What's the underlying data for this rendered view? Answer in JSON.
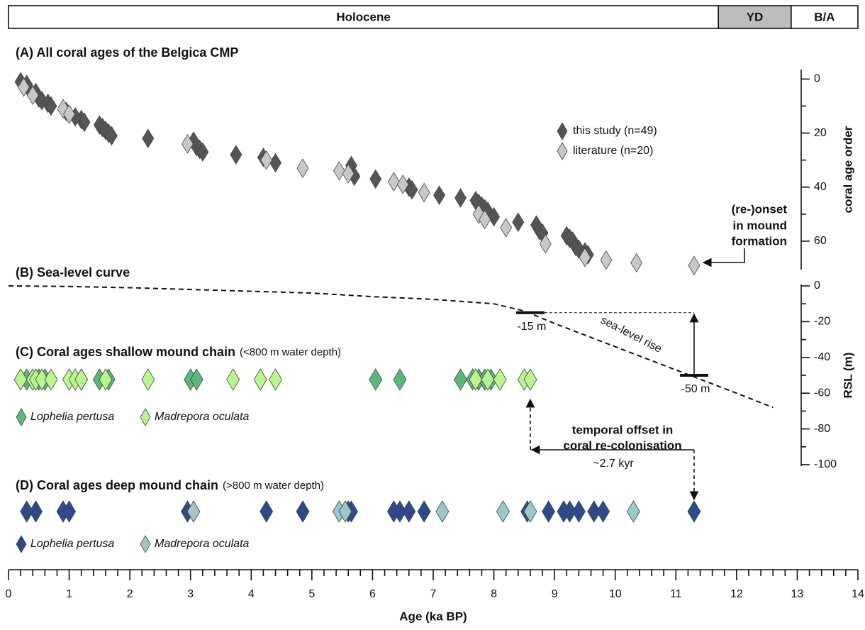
{
  "periods": [
    {
      "label": "Holocene",
      "start": 0,
      "end": 11.7,
      "color": "#ffffff"
    },
    {
      "label": "YD",
      "start": 11.7,
      "end": 12.9,
      "color": "#bdbdbd"
    },
    {
      "label": "B/A",
      "start": 12.9,
      "end": 14,
      "color": "#ffffff"
    }
  ],
  "chart_data": [
    {
      "type": "scatter",
      "title": "(A) All coral ages of the Belgica CMP",
      "ylabel": "coral age order",
      "ylim": [
        -3,
        70
      ],
      "yticks": [
        0,
        20,
        40,
        60
      ],
      "yminorticks": [
        10,
        30,
        50
      ],
      "series": [
        {
          "name": "this study (n=49)",
          "color": "#555555",
          "x": [
            0.2,
            0.3,
            0.35,
            0.45,
            0.5,
            0.55,
            0.65,
            0.7,
            0.95,
            1.1,
            1.2,
            1.25,
            1.5,
            1.55,
            1.6,
            1.65,
            1.7,
            2.3,
            3.05,
            3.1,
            3.15,
            3.2,
            3.75,
            4.2,
            4.4,
            5.65,
            5.7,
            6.05,
            6.6,
            6.65,
            7.1,
            7.45,
            7.7,
            7.75,
            7.8,
            7.85,
            7.9,
            8.0,
            8.4,
            8.7,
            8.75,
            8.8,
            9.2,
            9.25,
            9.3,
            9.35,
            9.4,
            9.5,
            9.55
          ],
          "y": [
            1,
            2,
            4,
            5,
            7,
            8,
            9,
            10,
            12,
            14,
            15,
            16,
            17,
            18,
            19,
            20,
            21,
            22,
            23,
            25,
            26,
            27,
            28,
            29,
            31,
            32,
            36,
            37,
            40,
            41,
            43,
            44,
            45,
            46,
            47,
            48,
            49,
            51,
            53,
            54,
            56,
            57,
            58,
            59,
            60,
            62,
            63,
            64,
            65
          ]
        },
        {
          "name": "literature (n=20)",
          "color": "#c8c8c8",
          "x": [
            0.25,
            0.4,
            0.9,
            1.0,
            2.95,
            4.25,
            4.85,
            5.45,
            5.6,
            6.35,
            6.5,
            6.85,
            7.75,
            7.85,
            8.2,
            8.85,
            9.5,
            9.85,
            10.35,
            11.3
          ],
          "y": [
            3,
            6,
            11,
            13,
            24,
            30,
            33,
            34,
            35,
            38,
            39,
            42,
            50,
            52,
            55,
            61,
            66,
            67,
            68,
            69
          ]
        }
      ],
      "annotation": [
        "(re-)onset",
        "in mound",
        "formation"
      ]
    },
    {
      "type": "line",
      "title": "(B) Sea-level curve",
      "ylabel": "RSL (m)",
      "ylim": [
        0,
        -100
      ],
      "yticks": [
        0,
        -20,
        -40,
        -60,
        -80,
        -100
      ],
      "yminorticks": [
        -10,
        -30,
        -50,
        -70,
        -90
      ],
      "x": [
        0,
        1,
        2,
        3,
        4,
        5,
        6,
        7,
        8,
        8.5,
        9,
        10,
        11,
        12,
        12.6
      ],
      "y": [
        0,
        -0.3,
        -1,
        -2,
        -3,
        -4,
        -6,
        -7.5,
        -10,
        -14,
        -21,
        -34,
        -47,
        -60,
        -68
      ],
      "markers": [
        {
          "x": 8.6,
          "y": -15,
          "label": "-15 m"
        },
        {
          "x": 11.3,
          "y": -50,
          "label": "-50 m"
        }
      ],
      "annotation": "sea-level rise"
    },
    {
      "type": "strip",
      "title": "(C) Coral ages shallow mound chain",
      "subtitle": "(<800 m water depth)",
      "series": [
        {
          "name": "Lophelia pertusa",
          "color": "#5cb87a",
          "x": [
            0.3,
            0.5,
            0.6,
            1.2,
            1.5,
            1.65,
            3.0,
            3.1,
            6.05,
            6.45,
            7.45,
            7.65,
            7.75,
            7.85,
            7.95
          ]
        },
        {
          "name": "Madrepora oculata",
          "color": "#b9f58f",
          "x": [
            0.2,
            0.4,
            0.45,
            0.55,
            0.7,
            1.0,
            1.1,
            1.2,
            1.6,
            2.3,
            3.7,
            4.15,
            4.4,
            7.7,
            7.9,
            8.1,
            8.5,
            8.6
          ]
        }
      ]
    },
    {
      "type": "strip",
      "title": "(D) Coral ages deep mound chain",
      "subtitle": "(>800 m water depth)",
      "series": [
        {
          "name": "Lophelia pertusa",
          "color": "#2f4a8a",
          "x": [
            0.3,
            0.45,
            0.9,
            1.0,
            2.95,
            4.25,
            4.85,
            5.6,
            5.65,
            6.35,
            6.45,
            6.6,
            6.85,
            8.55,
            8.9,
            9.15,
            9.25,
            9.4,
            9.65,
            9.8,
            11.3
          ]
        },
        {
          "name": "Madrepora oculata",
          "color": "#9fc7c7",
          "x": [
            3.05,
            5.45,
            5.55,
            7.15,
            8.15,
            8.6,
            10.3
          ]
        }
      ],
      "annotation": {
        "lines": [
          "temporal offset in",
          "coral re-colonisation"
        ],
        "label": "~2.7 kyr",
        "from": 11.3,
        "to": 8.6
      },
      "xlabel": "Age (ka BP)",
      "xlim": [
        0,
        14
      ],
      "xticks": [
        0,
        1,
        2,
        3,
        4,
        5,
        6,
        7,
        8,
        9,
        10,
        11,
        12,
        13,
        14
      ],
      "xminorticks": [
        0.2,
        0.4,
        0.6,
        0.8,
        1.2,
        1.4,
        1.6,
        1.8,
        2.2,
        2.4,
        2.6,
        2.8,
        3.2,
        3.4,
        3.6,
        3.8,
        4.2,
        4.4,
        4.6,
        4.8,
        5.2,
        5.4,
        5.6,
        5.8,
        6.2,
        6.4,
        6.6,
        6.8,
        7.2,
        7.4,
        7.6,
        7.8,
        8.2,
        8.4,
        8.6,
        8.8,
        9.2,
        9.4,
        9.6,
        9.8,
        10.2,
        10.4,
        10.6,
        10.8,
        11.2,
        11.4,
        11.6,
        11.8,
        12.2,
        12.4,
        12.6,
        12.8,
        13.2,
        13.4,
        13.6,
        13.8
      ]
    }
  ]
}
